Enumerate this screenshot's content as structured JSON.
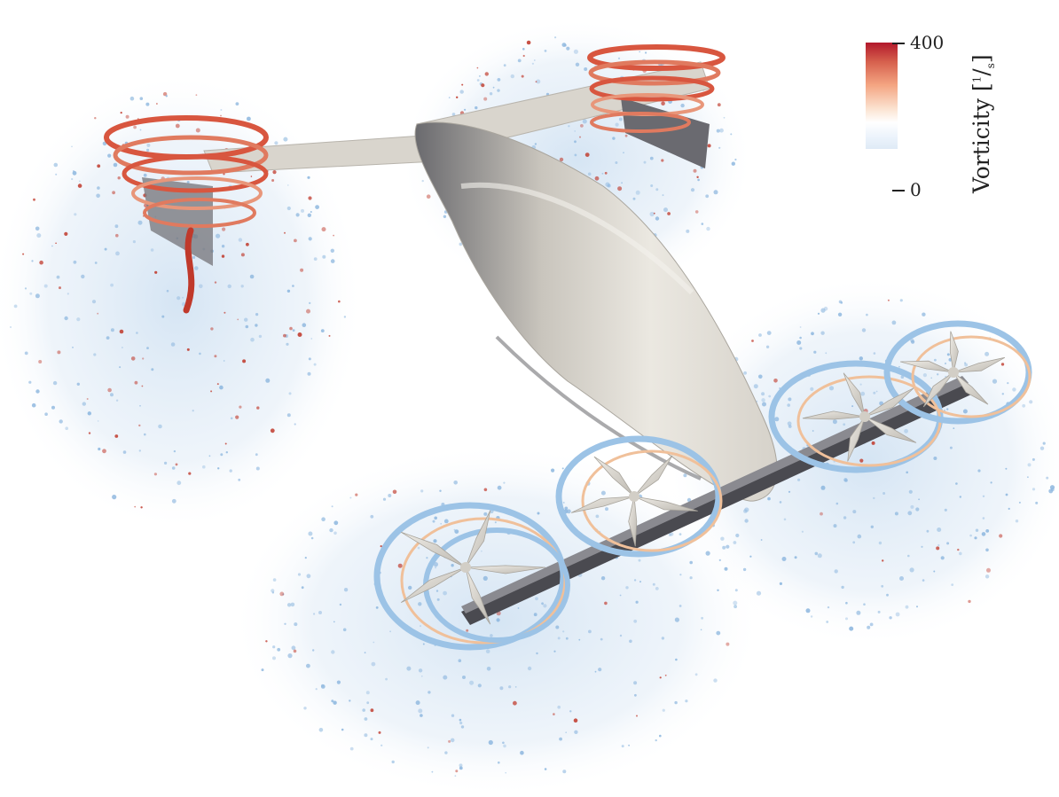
{
  "colorbar": {
    "max_label": "400",
    "min_label": "0",
    "title": "Vorticity [",
    "unit_num": "1",
    "unit_den": "s",
    "title_end": "]",
    "colors": [
      "#b2182b",
      "#d6604d",
      "#f4a582",
      "#fbe2d0",
      "#ffffff",
      "#eaf2fb",
      "#dfeaf6"
    ]
  },
  "scene": {
    "fuselage_color": "#dedad2",
    "wing_color": "#d9d5cd",
    "shadow_color": "#5a5a5e",
    "wake_blue": "#9cc3e6",
    "wake_red": "#c0392b",
    "rotor_count": 6
  }
}
